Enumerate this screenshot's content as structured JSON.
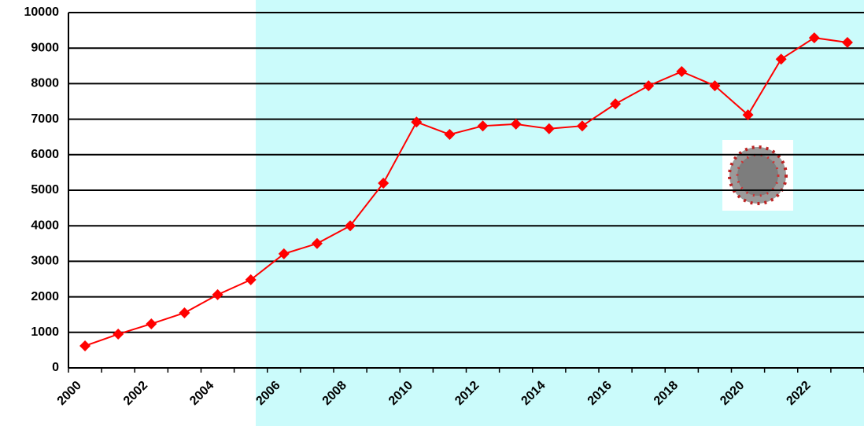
{
  "chart_data": {
    "type": "line",
    "categories": [
      "2000",
      null,
      "2002",
      null,
      "2004",
      null,
      "2006",
      null,
      "2008",
      null,
      "2010",
      null,
      "2012",
      null,
      "2014",
      null,
      "2016",
      null,
      "2018",
      null,
      "2020",
      null,
      "2022",
      null
    ],
    "series": [
      {
        "name": null,
        "color": "#ff0000",
        "values": [
          620,
          950,
          1240,
          1550,
          2060,
          2480,
          3210,
          3500,
          4000,
          5200,
          6920,
          6570,
          6810,
          6860,
          6730,
          6810,
          7430,
          7940,
          8340,
          7940,
          7120,
          8690,
          9290,
          9160
        ]
      }
    ],
    "ylim": [
      0,
      10000
    ],
    "yticks": [
      0,
      1000,
      2000,
      3000,
      4000,
      5000,
      6000,
      7000,
      8000,
      9000,
      10000
    ],
    "grid": true
  }
}
